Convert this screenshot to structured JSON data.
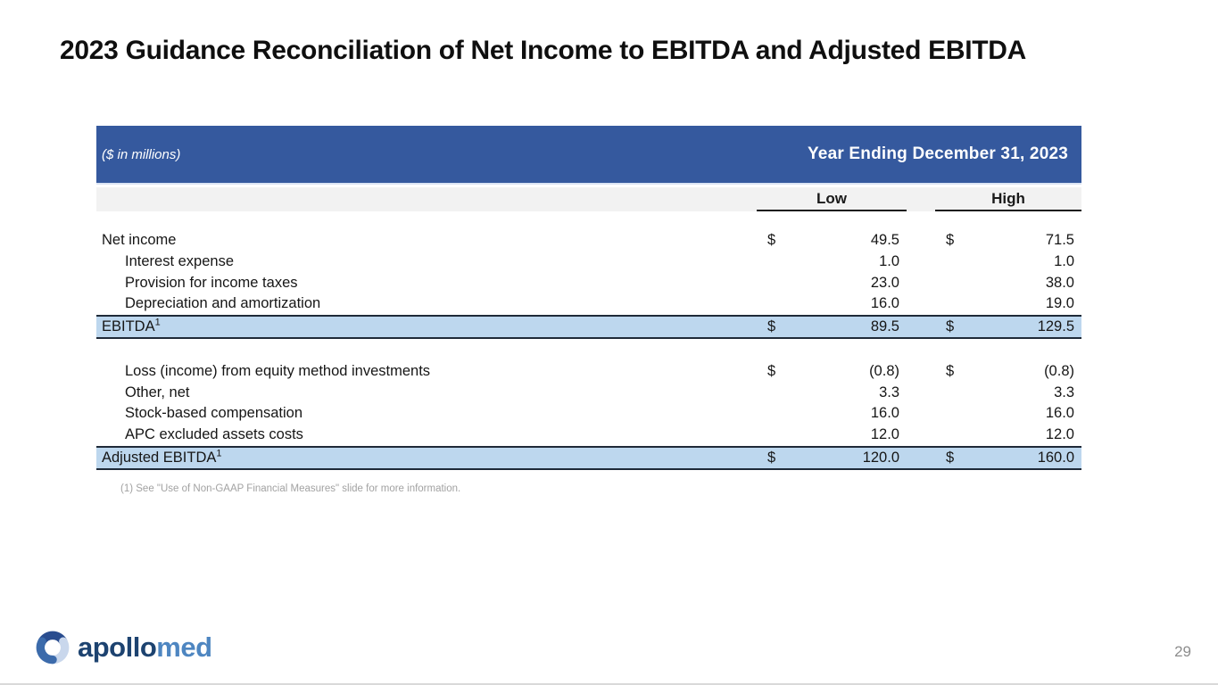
{
  "slide": {
    "title": "2023 Guidance Reconciliation of Net Income to EBITDA and Adjusted EBITDA",
    "footnote": "(1) See \"Use of Non-GAAP Financial Measures\" slide for more information.",
    "page_number": "29"
  },
  "logo": {
    "text_primary": "apollo",
    "text_secondary": "med"
  },
  "table": {
    "units_label": "($ in millions)",
    "period_header": "Year Ending December 31, 2023",
    "columns": [
      "Low",
      "High"
    ],
    "currency_symbol": "$",
    "sections": [
      {
        "rows": [
          {
            "label": "Net income",
            "indent": false,
            "dollar": true,
            "low": "49.5",
            "high": "71.5",
            "highlight": false
          },
          {
            "label": "Interest expense",
            "indent": true,
            "dollar": false,
            "low": "1.0",
            "high": "1.0",
            "highlight": false
          },
          {
            "label": "Provision for income taxes",
            "indent": true,
            "dollar": false,
            "low": "23.0",
            "high": "38.0",
            "highlight": false
          },
          {
            "label": "Depreciation and amortization",
            "indent": true,
            "dollar": false,
            "low": "16.0",
            "high": "19.0",
            "highlight": false
          },
          {
            "label": "EBITDA",
            "sup": "1",
            "indent": false,
            "dollar": true,
            "low": "89.5",
            "high": "129.5",
            "highlight": true
          }
        ]
      },
      {
        "rows": [
          {
            "label": "Loss (income) from equity method investments",
            "indent": true,
            "dollar": true,
            "low": "(0.8)",
            "high": "(0.8)",
            "highlight": false
          },
          {
            "label": "Other, net",
            "indent": true,
            "dollar": false,
            "low": "3.3",
            "high": "3.3",
            "highlight": false
          },
          {
            "label": "Stock-based compensation",
            "indent": true,
            "dollar": false,
            "low": "16.0",
            "high": "16.0",
            "highlight": false
          },
          {
            "label": "APC excluded assets costs",
            "indent": true,
            "dollar": false,
            "low": "12.0",
            "high": "12.0",
            "highlight": false
          },
          {
            "label": "Adjusted EBITDA",
            "sup": "1",
            "indent": false,
            "dollar": true,
            "low": "120.0",
            "high": "160.0",
            "highlight": true
          }
        ]
      }
    ]
  },
  "colors": {
    "header_blue": "#35599e",
    "band_gray": "#f2f2f2",
    "highlight_blue": "#bdd7ee",
    "dark_border": "#1f2a38",
    "logo_dark": "#1d4370",
    "logo_light": "#4e86c1"
  }
}
